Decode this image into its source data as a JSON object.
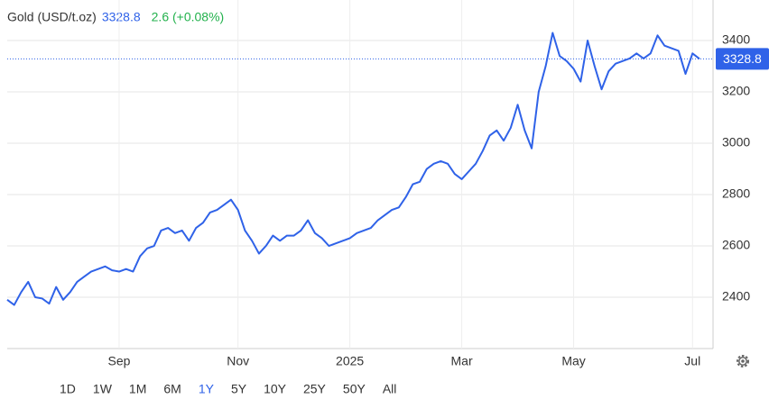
{
  "chart_data": {
    "type": "line",
    "title": "Gold (USD/t.oz)",
    "change": "2.6 (+0.08%)",
    "color": "#2f62e8",
    "change_color": "#22b14c",
    "categories": [
      null,
      null,
      null,
      null,
      null,
      null,
      null,
      null,
      null,
      null,
      null,
      null,
      null,
      null,
      null,
      null,
      "Sep",
      null,
      null,
      null,
      null,
      null,
      null,
      null,
      null,
      null,
      null,
      null,
      null,
      null,
      null,
      null,
      null,
      "Nov",
      null,
      null,
      null,
      null,
      null,
      null,
      null,
      null,
      null,
      null,
      null,
      null,
      null,
      null,
      null,
      "2025",
      null,
      null,
      null,
      null,
      null,
      null,
      null,
      null,
      null,
      null,
      null,
      null,
      null,
      null,
      null,
      "Mar",
      null,
      null,
      null,
      null,
      null,
      null,
      null,
      null,
      null,
      null,
      null,
      null,
      null,
      null,
      null,
      "May",
      null,
      null,
      null,
      null,
      null,
      null,
      null,
      null,
      null,
      null,
      null,
      null,
      null,
      null,
      null,
      null,
      "Jul",
      null
    ],
    "values": [
      2390,
      2370,
      2420,
      2460,
      2400,
      2395,
      2375,
      2440,
      2390,
      2420,
      2460,
      2480,
      2500,
      2510,
      2520,
      2505,
      2500,
      2510,
      2500,
      2560,
      2590,
      2600,
      2660,
      2670,
      2650,
      2660,
      2620,
      2670,
      2690,
      2730,
      2740,
      2760,
      2780,
      2740,
      2660,
      2620,
      2570,
      2600,
      2640,
      2620,
      2640,
      2640,
      2660,
      2700,
      2650,
      2630,
      2600,
      2610,
      2620,
      2630,
      2650,
      2660,
      2670,
      2700,
      2720,
      2740,
      2750,
      2790,
      2840,
      2850,
      2900,
      2920,
      2930,
      2920,
      2880,
      2860,
      2890,
      2920,
      2970,
      3030,
      3050,
      3010,
      3060,
      3150,
      3050,
      2980,
      3200,
      3300,
      3430,
      3340,
      3320,
      3290,
      3240,
      3400,
      3300,
      3210,
      3280,
      3310,
      3320,
      3330,
      3350,
      3330,
      3350,
      3420,
      3380,
      3370,
      3360,
      3270,
      3350,
      3328.8
    ],
    "ylim": [
      2200,
      3558
    ],
    "yticks": [
      2400,
      2600,
      2800,
      3000,
      3200,
      3400
    ],
    "grid": true,
    "range_buttons": [
      "1D",
      "1W",
      "1M",
      "6M",
      "1Y",
      "5Y",
      "10Y",
      "25Y",
      "50Y",
      "All"
    ],
    "selected_range": "1Y"
  }
}
